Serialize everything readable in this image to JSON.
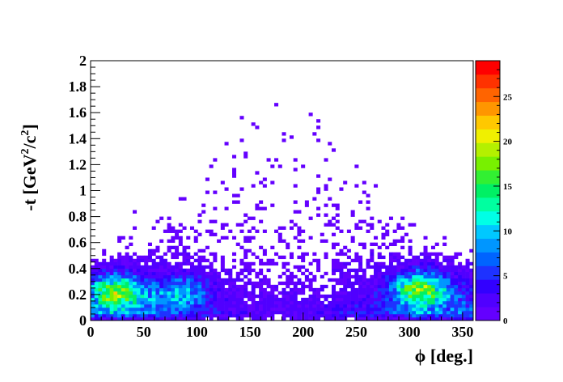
{
  "chart_data": {
    "type": "heatmap",
    "title": "",
    "xlabel": "ϕ [deg.]",
    "ylabel_parts": [
      "-t [GeV",
      "2",
      "/c",
      "2",
      "]"
    ],
    "xlim": [
      0,
      360
    ],
    "ylim": [
      0,
      2
    ],
    "zlim": [
      0,
      29
    ],
    "x_ticks": [
      0,
      50,
      100,
      150,
      200,
      250,
      300,
      350
    ],
    "x_tick_labels": [
      "0",
      "50",
      "100",
      "150",
      "200",
      "250",
      "300",
      "350"
    ],
    "y_ticks": [
      0,
      0.2,
      0.4,
      0.6,
      0.8,
      1,
      1.2,
      1.4,
      1.6,
      1.8,
      2
    ],
    "y_tick_labels": [
      "0",
      "0.2",
      "0.4",
      "0.6",
      "0.8",
      "1",
      "1.2",
      "1.4",
      "1.6",
      "1.8",
      "2"
    ],
    "colorbar_ticks": [
      0,
      5,
      10,
      15,
      20,
      25
    ],
    "colorbar_tick_labels": [
      "0",
      "5",
      "10",
      "15",
      "20",
      "25"
    ],
    "bins": {
      "nx": 100,
      "ny": 80
    },
    "hotspots": [
      {
        "phi": 25,
        "t": 0.22,
        "peak_count": 26
      },
      {
        "phi": 85,
        "t": 0.22,
        "peak_count": 14
      },
      {
        "phi": 310,
        "t": 0.24,
        "peak_count": 27
      }
    ],
    "grid": false,
    "legend": "colorbar-right"
  }
}
